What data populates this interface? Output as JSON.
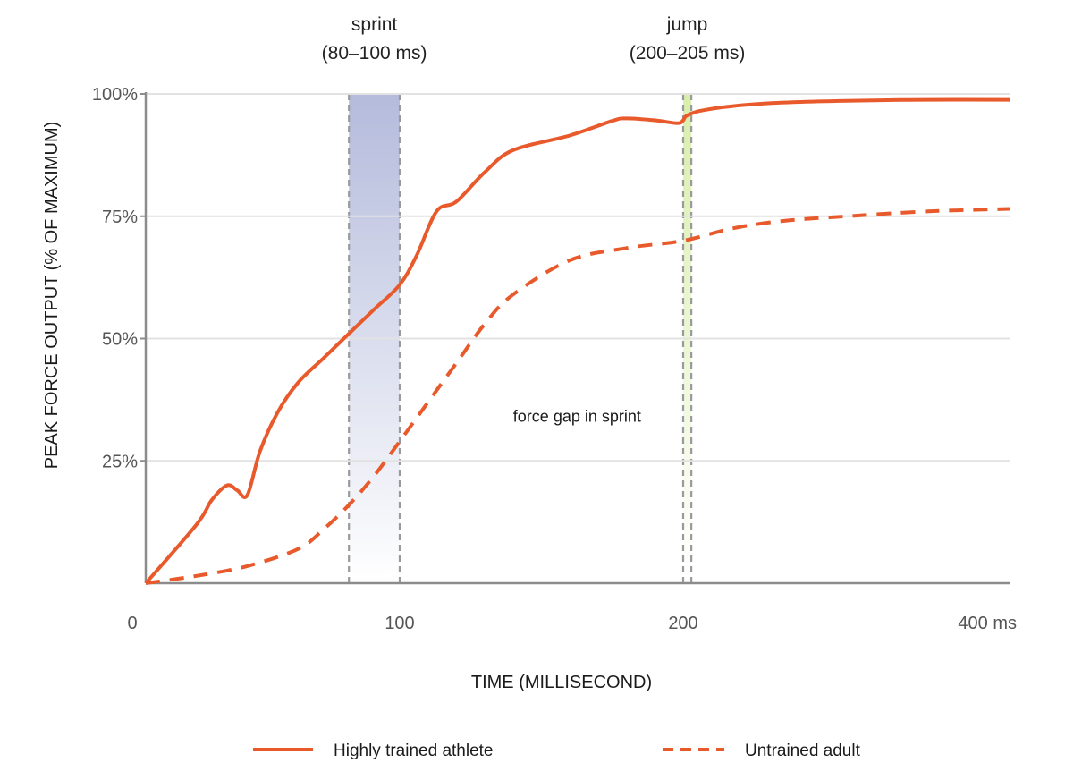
{
  "chart_data": {
    "type": "line",
    "xlabel": "TIME (MILLISECOND)",
    "ylabel": "PEAK FORCE OUTPUT (% OF MAXIMUM)",
    "x_ticks": [
      {
        "value": 0,
        "label": "0"
      },
      {
        "value": 100,
        "label": "100"
      },
      {
        "value": 200,
        "label": "200"
      },
      {
        "value": 400,
        "label": "400 ms"
      }
    ],
    "y_ticks": [
      {
        "value": 25,
        "label": "25%"
      },
      {
        "value": 50,
        "label": "50%"
      },
      {
        "value": 75,
        "label": "75%"
      },
      {
        "value": 100,
        "label": "100%"
      }
    ],
    "ylim": [
      0,
      100
    ],
    "grid": true,
    "legend_position": "bottom",
    "bands": [
      {
        "name": "sprint",
        "range_label": "(80–100 ms)",
        "x_start": 80,
        "x_end": 100,
        "color": "#b8bedd"
      },
      {
        "name": "jump",
        "range_label": "(200–205 ms)",
        "x_start": 200,
        "x_end": 205,
        "color": "#dcefb4"
      }
    ],
    "annotation": {
      "text": "force gap in sprint",
      "x": 140,
      "y": 33
    },
    "series": [
      {
        "name": "Highly trained athlete",
        "style": "solid",
        "color": "#e85a2c",
        "x": [
          0,
          20,
          26,
          32,
          36,
          40,
          45,
          52,
          60,
          70,
          80,
          90,
          100,
          106,
          113,
          120,
          130,
          140,
          160,
          175,
          180,
          190,
          198,
          200,
          202,
          210,
          230,
          260,
          300,
          350,
          400
        ],
        "y": [
          0,
          12,
          17,
          20,
          19,
          18,
          27,
          35,
          41,
          46,
          51,
          56,
          61,
          67,
          76,
          78,
          84,
          88.5,
          91.5,
          94.5,
          95,
          94.6,
          94,
          94.6,
          95.5,
          96.5,
          97.5,
          98.2,
          98.6,
          98.8,
          98.8
        ]
      },
      {
        "name": "Untrained adult",
        "style": "dashed",
        "color": "#e85a2c",
        "x": [
          0,
          20,
          40,
          60,
          70,
          80,
          90,
          100,
          110,
          120,
          130,
          140,
          160,
          180,
          200,
          230,
          260,
          300,
          350,
          400
        ],
        "y": [
          0,
          1.5,
          3.5,
          7,
          11,
          16,
          22,
          29,
          37,
          45,
          53,
          59,
          66,
          68.5,
          70,
          72.5,
          74,
          75,
          76,
          76.5
        ]
      }
    ]
  }
}
